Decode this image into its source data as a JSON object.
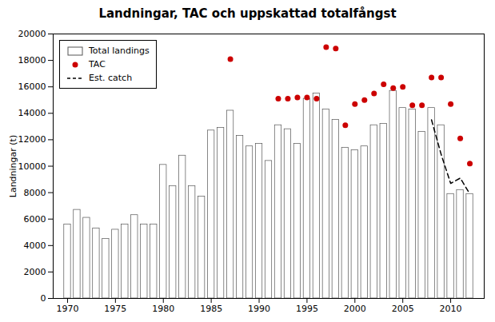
{
  "chart_data": {
    "type": "bar",
    "title": "Landningar, TAC och uppskattad totalfångst",
    "ylabel": "Landningar (t)",
    "series": [
      {
        "name": "Total landings",
        "type": "bar",
        "color": "white",
        "x": [
          1970,
          1971,
          1972,
          1973,
          1974,
          1975,
          1976,
          1977,
          1978,
          1979,
          1980,
          1981,
          1982,
          1983,
          1984,
          1985,
          1986,
          1987,
          1988,
          1989,
          1990,
          1991,
          1992,
          1993,
          1994,
          1995,
          1996,
          1997,
          1998,
          1999,
          2000,
          2001,
          2002,
          2003,
          2004,
          2005,
          2006,
          2007,
          2008,
          2009,
          2010,
          2011,
          2012
        ],
        "values": [
          5600,
          6700,
          6100,
          5300,
          4500,
          5200,
          5600,
          6300,
          5600,
          5600,
          10100,
          8500,
          10800,
          8500,
          7700,
          12700,
          12900,
          14200,
          12300,
          11500,
          11700,
          10400,
          13100,
          12800,
          11700,
          15100,
          15500,
          14300,
          13500,
          11400,
          11200,
          11500,
          13100,
          13200,
          15700,
          14400,
          14300,
          12600,
          14400,
          13100,
          7900,
          8200,
          7900
        ]
      },
      {
        "name": "TAC",
        "type": "scatter",
        "color": "#cc0000",
        "marker": "circle",
        "x": [
          1987,
          1992,
          1993,
          1994,
          1995,
          1996,
          1997,
          1998,
          1999,
          2000,
          2001,
          2002,
          2003,
          2004,
          2005,
          2006,
          2007,
          2008,
          2009,
          2010,
          2011,
          2012
        ],
        "values": [
          18100,
          15100,
          15100,
          15200,
          15200,
          15100,
          19000,
          18900,
          13100,
          14700,
          15000,
          15500,
          16200,
          15900,
          16000,
          14600,
          14600,
          16700,
          16700,
          14700,
          12100,
          10200
        ]
      },
      {
        "name": "Est. catch",
        "type": "line",
        "color": "black",
        "line_style": "dashed",
        "x": [
          2008,
          2009,
          2010,
          2011,
          2012
        ],
        "values": [
          13500,
          10900,
          8700,
          9100,
          7900
        ]
      }
    ],
    "xlim": [
      1968.5,
      2013.5
    ],
    "xticks": [
      1970,
      1975,
      1980,
      1985,
      1990,
      1995,
      2000,
      2005,
      2010
    ],
    "ylim": [
      0,
      20000
    ],
    "yticks": [
      0,
      2000,
      4000,
      6000,
      8000,
      10000,
      12000,
      14000,
      16000,
      18000,
      20000
    ],
    "grid": false,
    "legend": "upper left"
  }
}
